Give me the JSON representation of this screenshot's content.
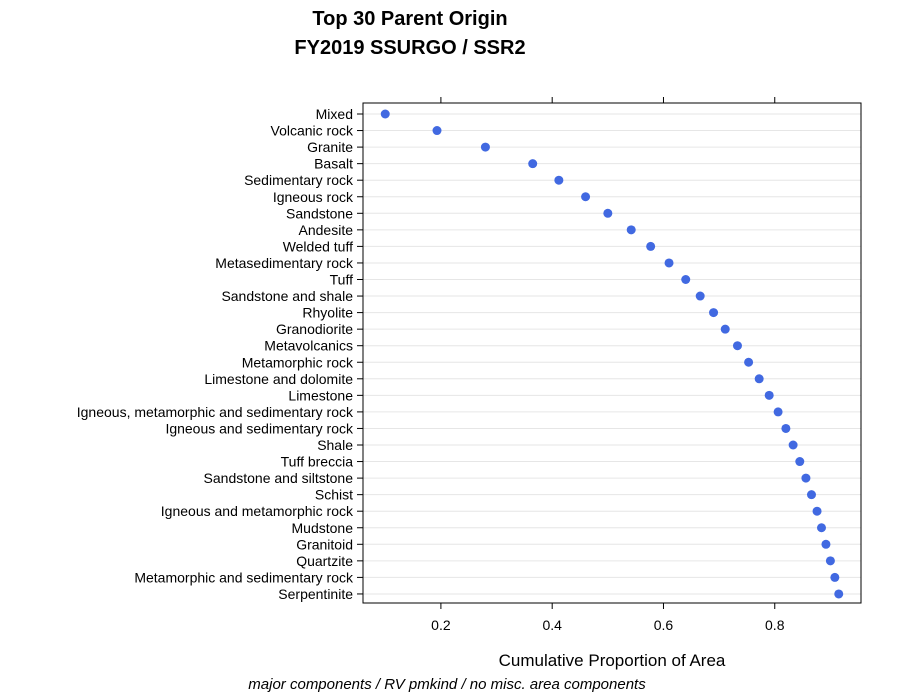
{
  "chart_data": {
    "type": "scatter",
    "title": "Top 30 Parent Origin",
    "subtitle": "FY2019 SSURGO / SSR2",
    "xlabel": "Cumulative Proportion of Area",
    "caption": "major components / RV pmkind / no misc. area components",
    "xlim": [
      0.06,
      0.955
    ],
    "x_ticks": [
      0.2,
      0.4,
      0.6,
      0.8
    ],
    "x_tick_labels": [
      "0.2",
      "0.4",
      "0.6",
      "0.8"
    ],
    "grid": true,
    "point_color": "#4169E1",
    "categories": [
      "Mixed",
      "Volcanic rock",
      "Granite",
      "Basalt",
      "Sedimentary rock",
      "Igneous rock",
      "Sandstone",
      "Andesite",
      "Welded tuff",
      "Metasedimentary rock",
      "Tuff",
      "Sandstone and shale",
      "Rhyolite",
      "Granodiorite",
      "Metavolcanics",
      "Metamorphic rock",
      "Limestone and dolomite",
      "Limestone",
      "Igneous, metamorphic and sedimentary rock",
      "Igneous and sedimentary rock",
      "Shale",
      "Tuff breccia",
      "Sandstone and siltstone",
      "Schist",
      "Igneous and metamorphic rock",
      "Mudstone",
      "Granitoid",
      "Quartzite",
      "Metamorphic and sedimentary rock",
      "Serpentinite"
    ],
    "values": [
      0.1,
      0.193,
      0.28,
      0.365,
      0.412,
      0.46,
      0.5,
      0.542,
      0.577,
      0.61,
      0.64,
      0.666,
      0.69,
      0.711,
      0.733,
      0.753,
      0.772,
      0.79,
      0.806,
      0.82,
      0.833,
      0.845,
      0.856,
      0.866,
      0.876,
      0.884,
      0.892,
      0.9,
      0.908,
      0.915
    ]
  }
}
